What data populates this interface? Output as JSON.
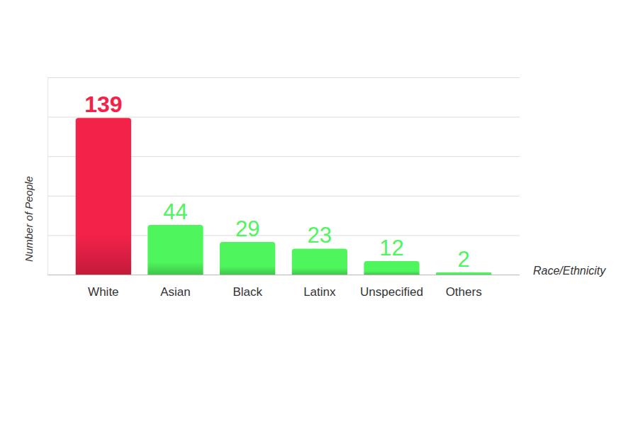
{
  "chart_data": {
    "type": "bar",
    "x_label": "Race/Ethnicity",
    "y_label": "Number of People",
    "categories": [
      "White",
      "Asian",
      "Black",
      "Latinx",
      "Unspecified",
      "Others"
    ],
    "values": [
      139,
      44,
      29,
      23,
      12,
      2
    ],
    "colors": [
      "#f22249",
      "#4ef55c",
      "#4ef55c",
      "#4ef55c",
      "#4ef55c",
      "#4ef55c"
    ],
    "ylim": [
      0,
      175
    ],
    "yticks": [
      0,
      35,
      70,
      105,
      140,
      175
    ],
    "grid": true,
    "data_labels": true,
    "tick_labels": "x"
  }
}
